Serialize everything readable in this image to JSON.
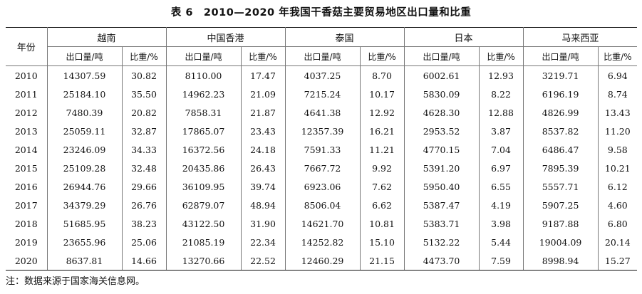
{
  "title": "表 6　2010—2020 年我国干香菇主要贸易地区出口量和比重",
  "header": {
    "year_label": "年份",
    "countries": [
      "越南",
      "中国香港",
      "泰国",
      "日本",
      "马来西亚"
    ],
    "sub_export": "出口量/吨",
    "sub_share": "比重/%"
  },
  "rows": [
    {
      "year": "2010",
      "vals": [
        "14307.59",
        "30.82",
        "8110.00",
        "17.47",
        "4037.25",
        "8.70",
        "6002.61",
        "12.93",
        "3219.71",
        "6.94"
      ]
    },
    {
      "year": "2011",
      "vals": [
        "25184.10",
        "35.50",
        "14962.23",
        "21.09",
        "7215.24",
        "10.17",
        "5830.09",
        "8.22",
        "6196.19",
        "8.74"
      ]
    },
    {
      "year": "2012",
      "vals": [
        "7480.39",
        "20.82",
        "7858.31",
        "21.87",
        "4641.38",
        "12.92",
        "4628.30",
        "12.88",
        "4826.99",
        "13.43"
      ]
    },
    {
      "year": "2013",
      "vals": [
        "25059.11",
        "32.87",
        "17865.07",
        "23.43",
        "12357.39",
        "16.21",
        "2953.52",
        "3.87",
        "8537.82",
        "11.20"
      ]
    },
    {
      "year": "2014",
      "vals": [
        "23246.09",
        "34.33",
        "16372.56",
        "24.18",
        "7591.33",
        "11.21",
        "4770.15",
        "7.04",
        "6486.47",
        "9.58"
      ]
    },
    {
      "year": "2015",
      "vals": [
        "25109.28",
        "32.48",
        "20435.86",
        "26.43",
        "7667.72",
        "9.92",
        "5391.20",
        "6.97",
        "7895.39",
        "10.21"
      ]
    },
    {
      "year": "2016",
      "vals": [
        "26944.76",
        "29.66",
        "36109.95",
        "39.74",
        "6923.06",
        "7.62",
        "5950.40",
        "6.55",
        "5557.71",
        "6.12"
      ]
    },
    {
      "year": "2017",
      "vals": [
        "34379.29",
        "26.76",
        "62879.07",
        "48.94",
        "8506.04",
        "6.62",
        "5387.47",
        "4.19",
        "5907.25",
        "4.60"
      ]
    },
    {
      "year": "2018",
      "vals": [
        "51685.95",
        "38.23",
        "43122.50",
        "31.90",
        "14621.70",
        "10.81",
        "5383.71",
        "3.98",
        "9187.88",
        "6.80"
      ]
    },
    {
      "year": "2019",
      "vals": [
        "23655.96",
        "25.06",
        "21085.19",
        "22.34",
        "14252.82",
        "15.10",
        "5132.22",
        "5.44",
        "19004.09",
        "20.14"
      ]
    },
    {
      "year": "2020",
      "vals": [
        "8637.81",
        "14.66",
        "13270.66",
        "22.52",
        "12460.29",
        "21.15",
        "4473.70",
        "7.59",
        "8998.94",
        "15.27"
      ]
    }
  ],
  "note": "注：数据来源于国家海关信息网。"
}
